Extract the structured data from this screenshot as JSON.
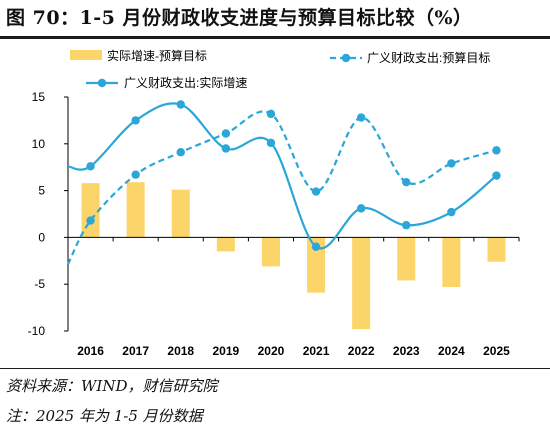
{
  "title": "图 70：1-5 月份财政收支进度与预算目标比较（%）",
  "source": "资料来源：WIND，财信研究院",
  "footnote": "注：2025 年为 1-5 月份数据",
  "colors": {
    "bar": "#FBD56A",
    "line": "#2AA6D8",
    "axis": "#000000"
  },
  "chart_data": {
    "type": "bar",
    "categories": [
      "2016",
      "2017",
      "2018",
      "2019",
      "2020",
      "2021",
      "2022",
      "2023",
      "2024",
      "2025"
    ],
    "ylim": [
      -10,
      15
    ],
    "yticks": [
      "15",
      "10",
      "5",
      "0",
      "-5",
      "-10"
    ],
    "grid": false,
    "legend_position": "top",
    "series": [
      {
        "name": "实际增速-预算目标",
        "type": "bar",
        "values": [
          5.8,
          5.9,
          5.1,
          -1.5,
          -3.1,
          -5.9,
          -9.8,
          -4.6,
          -5.3,
          -2.6
        ]
      },
      {
        "name": "广义财政支出:预算目标",
        "type": "line",
        "style": "dashed-smooth",
        "values": [
          1.8,
          6.7,
          9.1,
          11.1,
          13.2,
          4.9,
          12.8,
          5.9,
          7.9,
          9.3
        ]
      },
      {
        "name": "广义财政支出:实际增速",
        "type": "line",
        "style": "solid-smooth",
        "values": [
          7.6,
          12.5,
          14.2,
          9.5,
          10.1,
          -1.0,
          3.1,
          1.3,
          2.7,
          6.6
        ]
      }
    ]
  }
}
